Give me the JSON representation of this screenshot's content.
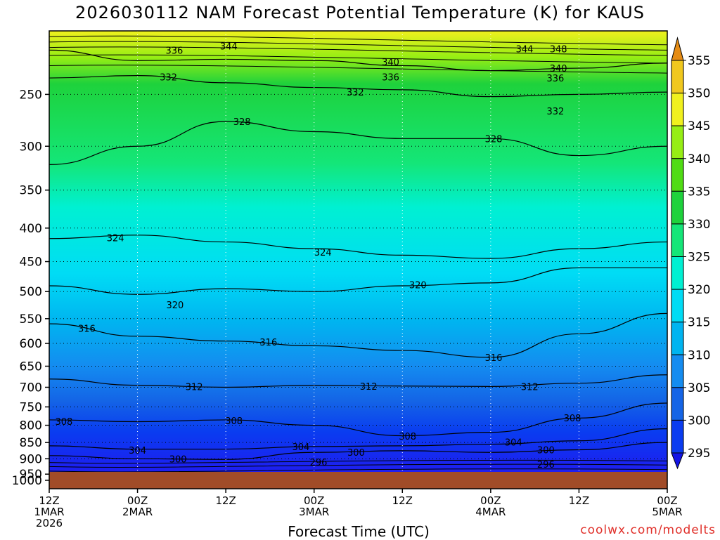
{
  "title": "2026030112 NAM Forecast Potential Temperature (K) for KAUS",
  "credit": "coolwx.com/modelts",
  "colors": {
    "ground": "#a14c28",
    "frame": "#000000",
    "grid": "#000000"
  },
  "chart_data": {
    "type": "heatmap",
    "title": "2026030112 NAM Forecast Potential Temperature (K) for KAUS",
    "xlabel": "Forecast Time (UTC)",
    "ylabel": "",
    "y_axis_scale": "log-pressure (inverted)",
    "ylim": [
      1000,
      200
    ],
    "xlim_hours": [
      0,
      84
    ],
    "grid": true,
    "legend": "right",
    "y_ticks": [
      250,
      300,
      350,
      400,
      450,
      500,
      550,
      600,
      650,
      700,
      750,
      800,
      850,
      900,
      950,
      1000
    ],
    "x_ticks": [
      {
        "lines": [
          "12Z",
          "1MAR",
          "2026"
        ]
      },
      {
        "lines": [
          "00Z",
          "2MAR"
        ]
      },
      {
        "lines": [
          "12Z"
        ]
      },
      {
        "lines": [
          "00Z",
          "3MAR"
        ]
      },
      {
        "lines": [
          "12Z"
        ]
      },
      {
        "lines": [
          "00Z",
          "4MAR"
        ]
      },
      {
        "lines": [
          "12Z"
        ]
      },
      {
        "lines": [
          "00Z",
          "5MAR"
        ]
      }
    ],
    "colorbar": {
      "levels": [
        295,
        300,
        305,
        310,
        315,
        320,
        325,
        330,
        335,
        340,
        345,
        350,
        355
      ],
      "labels": [
        "295",
        "300",
        "305",
        "310",
        "315",
        "320",
        "325",
        "330",
        "335",
        "340",
        "345",
        "350",
        "355"
      ],
      "colors": [
        "#1e1ef0",
        "#0a3cf0",
        "#1464e6",
        "#148cf0",
        "#00b4f0",
        "#00dcf5",
        "#00f0d2",
        "#14e678",
        "#1ed23c",
        "#50dc14",
        "#96ee14",
        "#f0f01e",
        "#f0c81e",
        "#f0a01e",
        "#e68c14"
      ]
    },
    "contour_labels": [
      {
        "text": "344",
        "t": 24.4,
        "p": 211
      },
      {
        "text": "344",
        "t": 64.6,
        "p": 213
      },
      {
        "text": "348",
        "t": 69.2,
        "p": 213
      },
      {
        "text": "336",
        "t": 17.0,
        "p": 214
      },
      {
        "text": "340",
        "t": 46.4,
        "p": 223
      },
      {
        "text": "340",
        "t": 69.2,
        "p": 228
      },
      {
        "text": "336",
        "t": 46.4,
        "p": 235
      },
      {
        "text": "336",
        "t": 68.8,
        "p": 236
      },
      {
        "text": "332",
        "t": 16.2,
        "p": 235
      },
      {
        "text": "332",
        "t": 41.6,
        "p": 248
      },
      {
        "text": "332",
        "t": 68.8,
        "p": 265
      },
      {
        "text": "328",
        "t": 26.2,
        "p": 275
      },
      {
        "text": "328",
        "t": 60.4,
        "p": 292
      },
      {
        "text": "324",
        "t": 9.0,
        "p": 414
      },
      {
        "text": "324",
        "t": 37.2,
        "p": 435
      },
      {
        "text": "320",
        "t": 50.1,
        "p": 488
      },
      {
        "text": "320",
        "t": 17.1,
        "p": 524
      },
      {
        "text": "316",
        "t": 5.1,
        "p": 569
      },
      {
        "text": "316",
        "t": 29.8,
        "p": 597
      },
      {
        "text": "316",
        "t": 60.4,
        "p": 630
      },
      {
        "text": "312",
        "t": 19.7,
        "p": 698
      },
      {
        "text": "312",
        "t": 43.4,
        "p": 697
      },
      {
        "text": "312",
        "t": 65.3,
        "p": 698
      },
      {
        "text": "308",
        "t": 2.0,
        "p": 789
      },
      {
        "text": "308",
        "t": 25.1,
        "p": 787
      },
      {
        "text": "308",
        "t": 48.7,
        "p": 831
      },
      {
        "text": "308",
        "t": 71.1,
        "p": 779
      },
      {
        "text": "304",
        "t": 12.0,
        "p": 873
      },
      {
        "text": "304",
        "t": 34.2,
        "p": 862
      },
      {
        "text": "304",
        "t": 63.1,
        "p": 849
      },
      {
        "text": "300",
        "t": 17.5,
        "p": 900
      },
      {
        "text": "300",
        "t": 41.7,
        "p": 879
      },
      {
        "text": "300",
        "t": 67.5,
        "p": 872
      },
      {
        "text": "296",
        "t": 36.6,
        "p": 911
      },
      {
        "text": "296",
        "t": 67.5,
        "p": 917
      }
    ],
    "isotherm_profiles_K_at_pressure": {
      "t": [
        0,
        12,
        24,
        36,
        48,
        60,
        72,
        84
      ],
      "336": [
        214,
        222,
        221,
        222,
        226,
        230,
        228,
        224
      ],
      "332": [
        236,
        234,
        240,
        244,
        246,
        252,
        250,
        248
      ],
      "328": [
        320,
        300,
        275,
        285,
        292,
        292,
        310,
        300
      ],
      "324": [
        415,
        410,
        420,
        430,
        440,
        445,
        430,
        420
      ],
      "320": [
        490,
        505,
        495,
        500,
        490,
        485,
        460,
        460
      ],
      "316": [
        560,
        585,
        595,
        605,
        615,
        630,
        580,
        540
      ],
      "312": [
        680,
        695,
        700,
        695,
        697,
        698,
        690,
        670
      ],
      "308": [
        785,
        790,
        785,
        800,
        830,
        820,
        780,
        740
      ],
      "304": [
        860,
        870,
        870,
        862,
        860,
        855,
        845,
        810
      ],
      "300": [
        890,
        900,
        902,
        880,
        875,
        880,
        872,
        850
      ]
    }
  }
}
